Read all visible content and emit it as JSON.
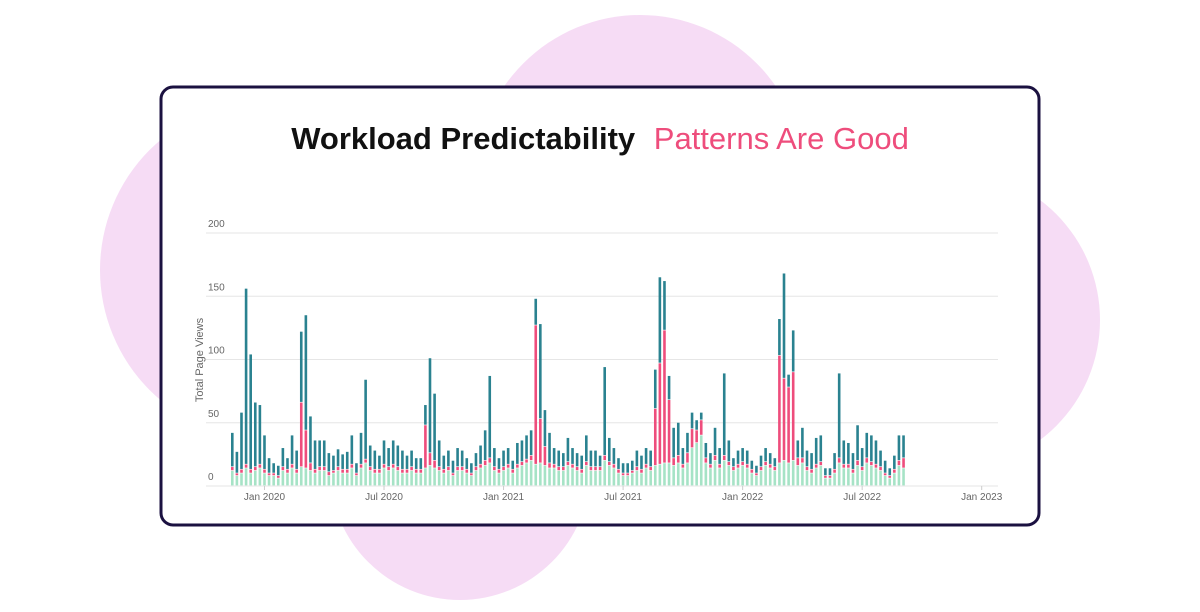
{
  "chart_data": {
    "type": "stacked-bar",
    "title": "Workload Predictability",
    "subtitle": "Patterns Are Good",
    "y_label": "Total Page Views",
    "categories": [
      null,
      null,
      null,
      null,
      null,
      null,
      null,
      null,
      null,
      null,
      null,
      null,
      null,
      null,
      null,
      null,
      null,
      null,
      null,
      null,
      null,
      null,
      null,
      null,
      null,
      null,
      null,
      null,
      null,
      null,
      null,
      null,
      null,
      null,
      null,
      null,
      null,
      null,
      null,
      null,
      null,
      null,
      null,
      null,
      null,
      null,
      null,
      null,
      null,
      null,
      null,
      null,
      null,
      null,
      null,
      null,
      null,
      null,
      null,
      null,
      null,
      null,
      null,
      null,
      null,
      null,
      null,
      null,
      null,
      null,
      null,
      null,
      null,
      null,
      null,
      null,
      null,
      null,
      null,
      null,
      null,
      null,
      null,
      null,
      null,
      null,
      null,
      null,
      null,
      null,
      null,
      null,
      null,
      null,
      null,
      null,
      null,
      null,
      null,
      null,
      null,
      null,
      null,
      null,
      null,
      null,
      null,
      null,
      null,
      null,
      null,
      null,
      null,
      null,
      null,
      null,
      null,
      null,
      null,
      null,
      null,
      null,
      null,
      null,
      null,
      null,
      null,
      null,
      null,
      null,
      null,
      null,
      null,
      null,
      null,
      null,
      null,
      null,
      null,
      null,
      null,
      null,
      null,
      null,
      null,
      null,
      null,
      null,
      null,
      null,
      null,
      null,
      null,
      null,
      null,
      null,
      null,
      null,
      null,
      null,
      null,
      null,
      null,
      null
    ],
    "series": [
      {
        "color": "#a6e3c6",
        "values": [
          12,
          8,
          10,
          14,
          10,
          12,
          14,
          10,
          8,
          8,
          6,
          12,
          10,
          14,
          10,
          15,
          14,
          12,
          10,
          12,
          12,
          8,
          10,
          12,
          10,
          10,
          14,
          8,
          14,
          18,
          12,
          10,
          10,
          14,
          12,
          14,
          12,
          10,
          10,
          12,
          10,
          10,
          14,
          16,
          14,
          12,
          10,
          12,
          8,
          12,
          12,
          10,
          8,
          12,
          14,
          16,
          18,
          12,
          10,
          12,
          14,
          10,
          14,
          16,
          18,
          20,
          17,
          18,
          16,
          14,
          14,
          12,
          12,
          16,
          14,
          12,
          10,
          16,
          12,
          12,
          12,
          20,
          16,
          14,
          10,
          8,
          8,
          10,
          12,
          10,
          14,
          12,
          16,
          17,
          18,
          18,
          16,
          18,
          14,
          18,
          30,
          34,
          40,
          18,
          14,
          20,
          14,
          20,
          16,
          12,
          14,
          16,
          14,
          10,
          8,
          12,
          16,
          14,
          12,
          18,
          20,
          18,
          20,
          16,
          18,
          12,
          10,
          14,
          16,
          6,
          6,
          10,
          18,
          14,
          14,
          10,
          16,
          12,
          18,
          16,
          14,
          12,
          8,
          6,
          10,
          16,
          14,
          null,
          null,
          null,
          null,
          null,
          null,
          null,
          null,
          null,
          null,
          null,
          null,
          null,
          null,
          null,
          null,
          null
        ]
      },
      {
        "color": "#ee4d7c",
        "values": [
          3,
          2,
          3,
          3,
          3,
          3,
          3,
          3,
          2,
          2,
          2,
          3,
          3,
          3,
          3,
          51,
          30,
          6,
          3,
          3,
          3,
          3,
          2,
          3,
          3,
          3,
          3,
          2,
          3,
          3,
          3,
          3,
          3,
          3,
          3,
          3,
          3,
          3,
          3,
          3,
          3,
          3,
          34,
          10,
          6,
          3,
          3,
          3,
          2,
          3,
          3,
          3,
          2,
          3,
          3,
          4,
          4,
          3,
          3,
          3,
          3,
          3,
          3,
          3,
          3,
          4,
          110,
          35,
          15,
          4,
          3,
          3,
          3,
          3,
          3,
          3,
          3,
          3,
          3,
          3,
          3,
          4,
          3,
          3,
          3,
          2,
          2,
          2,
          3,
          3,
          3,
          3,
          45,
          80,
          105,
          50,
          6,
          6,
          3,
          8,
          15,
          10,
          12,
          4,
          3,
          4,
          3,
          4,
          3,
          3,
          3,
          3,
          3,
          3,
          2,
          3,
          3,
          3,
          3,
          85,
          65,
          60,
          70,
          6,
          4,
          3,
          3,
          3,
          3,
          2,
          2,
          3,
          4,
          3,
          3,
          3,
          4,
          3,
          4,
          3,
          3,
          3,
          2,
          2,
          3,
          4,
          8,
          null,
          null,
          null,
          null,
          null,
          null,
          null,
          null,
          null,
          null,
          null,
          null,
          null,
          null,
          null,
          null,
          null
        ]
      },
      {
        "color": "#2a8290",
        "values": [
          27,
          17,
          45,
          139,
          91,
          51,
          47,
          27,
          12,
          8,
          8,
          15,
          9,
          23,
          15,
          56,
          91,
          37,
          23,
          21,
          21,
          15,
          12,
          14,
          12,
          14,
          23,
          8,
          25,
          63,
          17,
          15,
          11,
          19,
          15,
          19,
          17,
          15,
          11,
          13,
          9,
          9,
          16,
          75,
          53,
          21,
          11,
          13,
          10,
          15,
          13,
          9,
          8,
          11,
          15,
          24,
          65,
          15,
          9,
          13,
          13,
          7,
          17,
          17,
          19,
          20,
          21,
          75,
          29,
          24,
          13,
          13,
          11,
          19,
          13,
          11,
          11,
          21,
          13,
          13,
          9,
          70,
          19,
          13,
          9,
          8,
          8,
          8,
          13,
          11,
          13,
          13,
          31,
          68,
          39,
          19,
          24,
          26,
          13,
          16,
          13,
          8,
          6,
          12,
          9,
          22,
          13,
          65,
          17,
          7,
          11,
          11,
          11,
          7,
          6,
          9,
          11,
          9,
          7,
          29,
          83,
          10,
          33,
          14,
          24,
          13,
          13,
          21,
          21,
          6,
          6,
          13,
          67,
          19,
          17,
          13,
          28,
          15,
          20,
          21,
          19,
          13,
          10,
          6,
          11,
          20,
          18,
          null,
          null,
          null,
          null,
          null,
          null,
          null,
          null,
          null,
          null,
          null,
          null,
          null,
          null,
          null,
          null,
          null
        ]
      }
    ],
    "ylim": [
      0,
      200
    ],
    "yticks": [
      0,
      50,
      100,
      150,
      200
    ],
    "grid": true,
    "xticks": [
      {
        "value": 7,
        "label": "Jan 2020"
      },
      {
        "value": 33,
        "label": "Jul 2020"
      },
      {
        "value": 59,
        "label": "Jan 2021"
      },
      {
        "value": 85,
        "label": "Jul 2021"
      },
      {
        "value": 111,
        "label": "Jan 2022"
      },
      {
        "value": 137,
        "label": "Jul 2022"
      },
      {
        "value": 163,
        "label": "Jan 2023"
      }
    ]
  }
}
